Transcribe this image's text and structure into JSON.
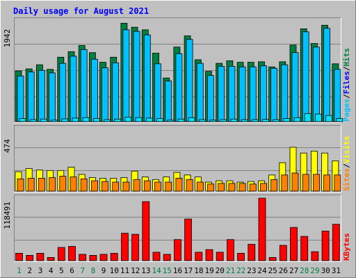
{
  "chart_data": [
    {
      "type": "bar",
      "title": "Daily usage for August 2021",
      "ytick_label": "1942",
      "ylim": [
        0,
        2000
      ],
      "right_label_parts": [
        "Pages",
        "Files",
        "Hits"
      ],
      "right_label_seps": [
        "/",
        "/"
      ],
      "categories": [
        "1",
        "2",
        "3",
        "4",
        "5",
        "6",
        "7",
        "8",
        "9",
        "10",
        "11",
        "12",
        "13",
        "14",
        "15",
        "16",
        "17",
        "18",
        "19",
        "20",
        "21",
        "22",
        "23",
        "24",
        "25",
        "26",
        "27",
        "28",
        "29",
        "30",
        "31"
      ],
      "series": [
        {
          "name": "Hits",
          "values": [
            1000,
            1040,
            1120,
            1030,
            1270,
            1380,
            1500,
            1360,
            1170,
            1270,
            1940,
            1860,
            1810,
            1350,
            860,
            1470,
            1690,
            1220,
            990,
            1150,
            1200,
            1170,
            1170,
            1180,
            1080,
            1180,
            1510,
            1830,
            1540,
            1900,
            1140
          ]
        },
        {
          "name": "Files",
          "values": [
            900,
            980,
            1010,
            960,
            1150,
            1290,
            1420,
            1230,
            1060,
            1160,
            1810,
            1780,
            1710,
            1140,
            800,
            1340,
            1620,
            1150,
            910,
            1090,
            1090,
            1080,
            1080,
            1100,
            1050,
            1120,
            1360,
            1770,
            1470,
            1840,
            1030
          ]
        },
        {
          "name": "Pages",
          "values": [
            60,
            40,
            50,
            30,
            55,
            70,
            80,
            60,
            40,
            50,
            90,
            80,
            70,
            60,
            30,
            50,
            80,
            40,
            30,
            40,
            50,
            40,
            40,
            45,
            40,
            60,
            80,
            160,
            150,
            120,
            60
          ]
        }
      ],
      "colors": {
        "Hits": "#008040",
        "Files": "#00c0ff",
        "Pages": "#00e0ff"
      }
    },
    {
      "type": "bar",
      "ytick_label": "474",
      "ylim": [
        0,
        490
      ],
      "right_label_parts": [
        "Sites",
        "Visits"
      ],
      "right_label_seps": [
        "/"
      ],
      "categories": [
        "1",
        "2",
        "3",
        "4",
        "5",
        "6",
        "7",
        "8",
        "9",
        "10",
        "11",
        "12",
        "13",
        "14",
        "15",
        "16",
        "17",
        "18",
        "19",
        "20",
        "21",
        "22",
        "23",
        "24",
        "25",
        "26",
        "27",
        "28",
        "29",
        "30",
        "31"
      ],
      "series": [
        {
          "name": "Visits",
          "values": [
            150,
            175,
            165,
            160,
            160,
            185,
            130,
            105,
            100,
            100,
            105,
            155,
            110,
            90,
            110,
            145,
            125,
            110,
            70,
            80,
            80,
            70,
            75,
            80,
            125,
            220,
            340,
            295,
            310,
            295,
            235
          ]
        },
        {
          "name": "Sites",
          "values": [
            95,
            100,
            100,
            105,
            115,
            110,
            95,
            80,
            75,
            70,
            70,
            90,
            80,
            70,
            70,
            100,
            90,
            70,
            55,
            60,
            60,
            60,
            55,
            60,
            90,
            125,
            140,
            130,
            130,
            125,
            125
          ]
        }
      ],
      "colors": {
        "Visits": "#ffff00",
        "Sites": "#ff8000"
      }
    },
    {
      "type": "bar",
      "ytick_label": "118491",
      "ylim": [
        0,
        120000
      ],
      "right_label_parts": [
        "KBytes"
      ],
      "right_label_seps": [],
      "categories": [
        "1",
        "2",
        "3",
        "4",
        "5",
        "6",
        "7",
        "8",
        "9",
        "10",
        "11",
        "12",
        "13",
        "14",
        "15",
        "16",
        "17",
        "18",
        "19",
        "20",
        "21",
        "22",
        "23",
        "24",
        "25",
        "26",
        "27",
        "28",
        "29",
        "30",
        "31"
      ],
      "series": [
        {
          "name": "KBytes",
          "values": [
            14000,
            10000,
            14000,
            6000,
            25000,
            27000,
            12000,
            10000,
            12000,
            14000,
            52000,
            50000,
            112000,
            16000,
            12000,
            40000,
            79000,
            16000,
            21000,
            16000,
            40000,
            14000,
            31000,
            118491,
            6000,
            29000,
            63000,
            46000,
            17000,
            56000,
            69000
          ]
        }
      ],
      "colors": {
        "KBytes": "#ff0000"
      }
    }
  ],
  "weekend_days": [
    "1",
    "7",
    "8",
    "14",
    "15",
    "21",
    "22",
    "28",
    "29"
  ],
  "colors": {
    "title": "#0000ff",
    "weekday_label": "#000000",
    "weekend_label": "#008040",
    "Pages": "#00c0ff",
    "Files": "#0000ff",
    "Hits": "#008040",
    "Sites": "#ff8000",
    "Visits": "#ffff00",
    "KBytes": "#ff0000",
    "sep": "#000000"
  }
}
